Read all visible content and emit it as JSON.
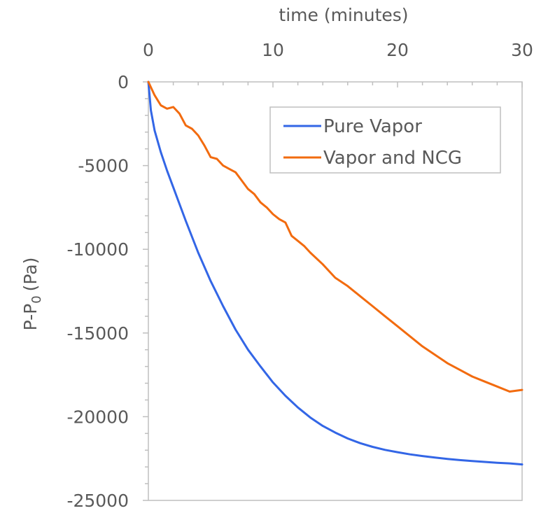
{
  "chart_data": {
    "type": "line",
    "xlabel": "time (minutes)",
    "ylabel": "P-P",
    "ylabel_subscript": "0",
    "ylabel_unit": "(Pa)",
    "xlim": [
      0,
      30
    ],
    "ylim": [
      -25000,
      0
    ],
    "x_axis_position": "top",
    "x_ticks": [
      0,
      10,
      20,
      30
    ],
    "y_ticks": [
      0,
      -5000,
      -10000,
      -15000,
      -20000,
      -25000
    ],
    "grid": false,
    "legend_position": "top-right",
    "series": [
      {
        "name": "Pure Vapor",
        "color": "#3366e6",
        "x": [
          0,
          0.2,
          0.5,
          1,
          1.5,
          2,
          3,
          4,
          5,
          6,
          7,
          8,
          9,
          10,
          11,
          12,
          13,
          14,
          15,
          16,
          17,
          18,
          19,
          20,
          21,
          22,
          23,
          24,
          25,
          26,
          27,
          28,
          29,
          30
        ],
        "y": [
          0,
          -1700,
          -2900,
          -4200,
          -5300,
          -6300,
          -8300,
          -10200,
          -11900,
          -13400,
          -14800,
          -16000,
          -17000,
          -17950,
          -18750,
          -19450,
          -20050,
          -20550,
          -20950,
          -21300,
          -21580,
          -21800,
          -21980,
          -22120,
          -22250,
          -22350,
          -22440,
          -22520,
          -22590,
          -22650,
          -22700,
          -22750,
          -22790,
          -22850
        ]
      },
      {
        "name": "Vapor and NCG",
        "color": "#f26b0f",
        "x": [
          0,
          0.5,
          1,
          1.5,
          2,
          2.5,
          3,
          3.5,
          4,
          4.5,
          5,
          5.5,
          6,
          6.5,
          7,
          7.5,
          8,
          8.5,
          9,
          9.5,
          10,
          10.5,
          11,
          11.5,
          12,
          12.5,
          13,
          14,
          15,
          16,
          17,
          18,
          19,
          20,
          21,
          22,
          23,
          24,
          25,
          26,
          27,
          28,
          29,
          30
        ],
        "y": [
          0,
          -800,
          -1400,
          -1600,
          -1500,
          -1900,
          -2600,
          -2800,
          -3200,
          -3800,
          -4500,
          -4600,
          -5000,
          -5200,
          -5400,
          -5900,
          -6400,
          -6700,
          -7200,
          -7500,
          -7900,
          -8200,
          -8400,
          -9200,
          -9500,
          -9800,
          -10200,
          -10900,
          -11700,
          -12200,
          -12800,
          -13400,
          -14000,
          -14600,
          -15200,
          -15800,
          -16300,
          -16800,
          -17200,
          -17600,
          -17900,
          -18200,
          -18500,
          -18400
        ]
      }
    ]
  }
}
